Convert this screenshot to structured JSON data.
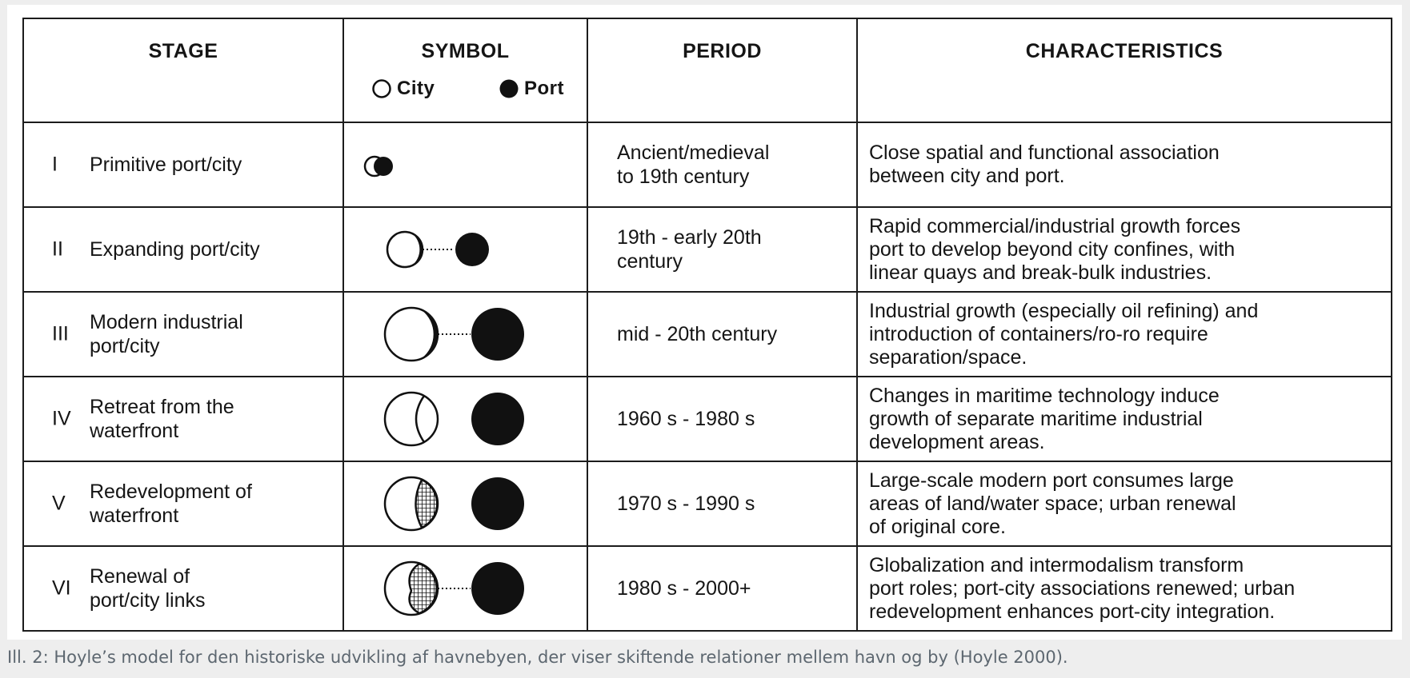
{
  "table": {
    "headers": {
      "stage": "STAGE",
      "symbol": "SYMBOL",
      "period": "PERIOD",
      "characteristics": "CHARACTERISTICS"
    },
    "legend": {
      "city": "City",
      "port": "Port"
    },
    "rows": [
      {
        "numeral": "I",
        "stage": "Primitive port/city",
        "symbol": "overlapping-city-port-icon",
        "period": "Ancient/medieval\nto 19th century",
        "characteristics": "Close spatial and functional association\nbetween city and port."
      },
      {
        "numeral": "II",
        "stage": "Expanding port/city",
        "symbol": "city-port-linked-icon",
        "period": "19th - early 20th\ncentury",
        "characteristics": "Rapid commercial/industrial growth forces\nport to develop beyond city confines, with\nlinear quays and break-bulk industries."
      },
      {
        "numeral": "III",
        "stage": "Modern industrial\nport/city",
        "symbol": "city-port-industrial-icon",
        "period": "mid - 20th century",
        "characteristics": "Industrial growth (especially oil refining) and\nintroduction of containers/ro-ro require\nseparation/space."
      },
      {
        "numeral": "IV",
        "stage": "Retreat from the\nwaterfront",
        "symbol": "city-port-separated-icon",
        "period": "1960 s - 1980 s",
        "characteristics": "Changes in maritime technology induce\ngrowth of separate maritime industrial\ndevelopment areas."
      },
      {
        "numeral": "V",
        "stage": "Redevelopment of\nwaterfront",
        "symbol": "city-redevelopment-icon",
        "period": "1970 s - 1990 s",
        "characteristics": "Large-scale modern port consumes large\nareas of land/water space; urban renewal\nof original core."
      },
      {
        "numeral": "VI",
        "stage": "Renewal of\nport/city links",
        "symbol": "city-port-renewal-icon",
        "period": "1980 s - 2000+",
        "characteristics": "Globalization and intermodalism transform\nport roles; port-city associations renewed; urban\nredevelopment enhances port-city integration."
      }
    ]
  },
  "caption": "Ill. 2: Hoyle’s model for den historiske udvikling af havnebyen, der viser skiftende relationer mellem havn og by (Hoyle 2000).",
  "colors": {
    "page_background": "#eeeeee",
    "figure_background": "#ffffff",
    "ink": "#151515",
    "caption_text": "#5d6770"
  }
}
